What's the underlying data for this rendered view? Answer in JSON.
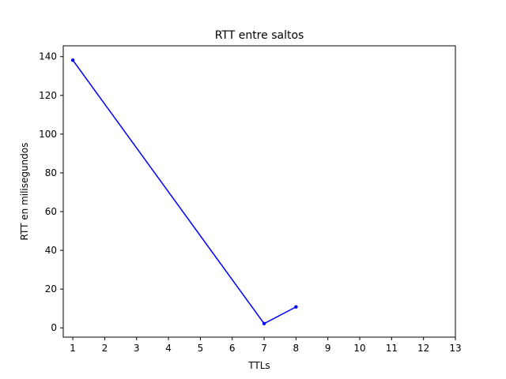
{
  "chart_data": {
    "type": "line",
    "title": "RTT entre saltos",
    "xlabel": "TTLs",
    "ylabel": "RTT en milisegundos",
    "xlim": [
      0.7,
      13
    ],
    "ylim": [
      -4.8,
      145.6
    ],
    "x_ticks": [
      1,
      2,
      3,
      4,
      5,
      6,
      7,
      8,
      9,
      10,
      11,
      12,
      13
    ],
    "y_ticks": [
      0,
      20,
      40,
      60,
      80,
      100,
      120,
      140
    ],
    "grid": false,
    "series": [
      {
        "color": "#0000ff",
        "segments": [
          [
            {
              "x": 1,
              "y": 138.2
            },
            {
              "x": 7,
              "y": 2.2
            },
            {
              "x": 8,
              "y": 10.8
            }
          ]
        ]
      }
    ]
  }
}
